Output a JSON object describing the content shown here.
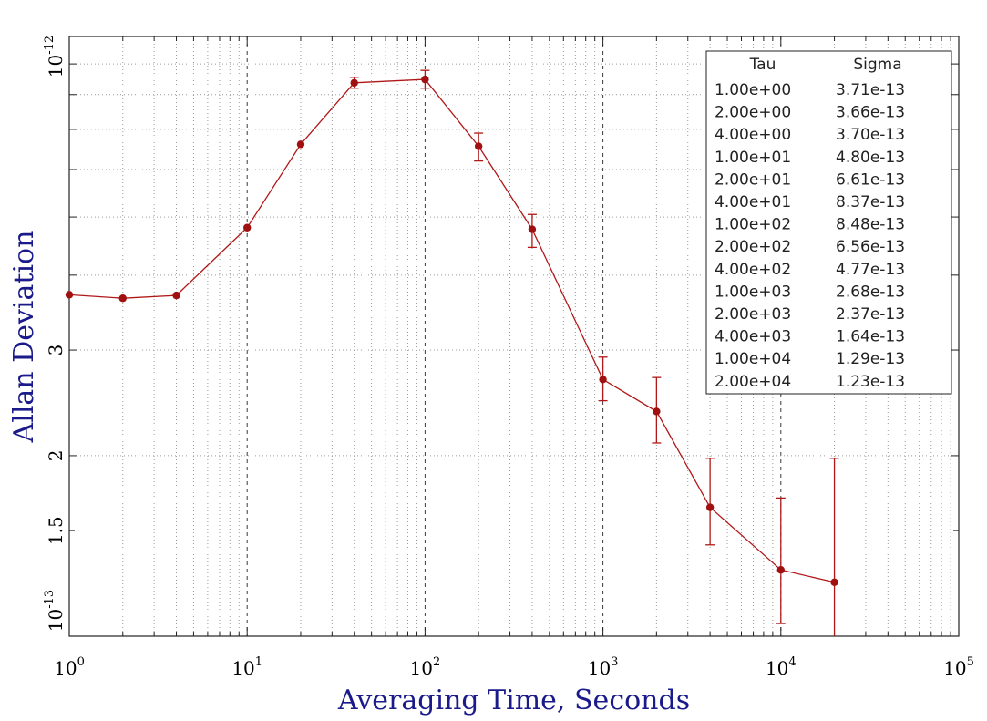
{
  "chart_data": {
    "type": "line",
    "title": "",
    "xlabel": "Averaging Time, Seconds",
    "ylabel": "Allan Deviation",
    "x_scale": "log",
    "y_scale": "log",
    "xlim": [
      1,
      100000
    ],
    "ylim": [
      1e-13,
      1e-12
    ],
    "grid": true,
    "x_ticks": [
      {
        "value": 1,
        "base": "10",
        "exp": "0"
      },
      {
        "value": 10,
        "base": "10",
        "exp": "1"
      },
      {
        "value": 100,
        "base": "10",
        "exp": "2"
      },
      {
        "value": 1000,
        "base": "10",
        "exp": "3"
      },
      {
        "value": 10000,
        "base": "10",
        "exp": "4"
      },
      {
        "value": 100000,
        "base": "10",
        "exp": "5"
      }
    ],
    "y_ticks": [
      {
        "value": 1e-13,
        "base": "10",
        "exp": "-13"
      },
      {
        "value": 1.5e-13,
        "base": "1.5",
        "exp": ""
      },
      {
        "value": 2e-13,
        "base": "2",
        "exp": ""
      },
      {
        "value": 3e-13,
        "base": "3",
        "exp": ""
      },
      {
        "value": 1e-12,
        "base": "10",
        "exp": "-12"
      }
    ],
    "series": [
      {
        "points": [
          {
            "x": 1,
            "y": 3.71e-13
          },
          {
            "x": 2,
            "y": 3.66e-13
          },
          {
            "x": 4,
            "y": 3.7e-13
          },
          {
            "x": 10,
            "y": 4.8e-13
          },
          {
            "x": 20,
            "y": 6.61e-13
          },
          {
            "x": 40,
            "y": 8.37e-13,
            "err": [
              8.2e-13,
              8.55e-13
            ]
          },
          {
            "x": 100,
            "y": 8.48e-13,
            "err": [
              8.2e-13,
              8.78e-13
            ]
          },
          {
            "x": 200,
            "y": 6.56e-13,
            "err": [
              6.2e-13,
              6.9e-13
            ]
          },
          {
            "x": 400,
            "y": 4.77e-13,
            "err": [
              4.45e-13,
              5.05e-13
            ]
          },
          {
            "x": 1000,
            "y": 2.68e-13,
            "err": [
              2.47e-13,
              2.92e-13
            ]
          },
          {
            "x": 2000,
            "y": 2.37e-13,
            "err": [
              2.1e-13,
              2.7e-13
            ]
          },
          {
            "x": 4000,
            "y": 1.64e-13,
            "err": [
              1.42e-13,
              1.98e-13
            ]
          },
          {
            "x": 10000,
            "y": 1.29e-13,
            "err": [
              1.05e-13,
              1.7e-13
            ]
          },
          {
            "x": 20000,
            "y": 1.23e-13,
            "err": [
              1e-13,
              1.98e-13
            ]
          }
        ]
      }
    ],
    "legend_table": {
      "headers": [
        "Tau",
        "Sigma"
      ],
      "position": "top-right",
      "rows": [
        [
          "1.00e+00",
          "3.71e-13"
        ],
        [
          "2.00e+00",
          "3.66e-13"
        ],
        [
          "4.00e+00",
          "3.70e-13"
        ],
        [
          "1.00e+01",
          "4.80e-13"
        ],
        [
          "2.00e+01",
          "6.61e-13"
        ],
        [
          "4.00e+01",
          "8.37e-13"
        ],
        [
          "1.00e+02",
          "8.48e-13"
        ],
        [
          "2.00e+02",
          "6.56e-13"
        ],
        [
          "4.00e+02",
          "4.77e-13"
        ],
        [
          "1.00e+03",
          "2.68e-13"
        ],
        [
          "2.00e+03",
          "2.37e-13"
        ],
        [
          "4.00e+03",
          "1.64e-13"
        ],
        [
          "1.00e+04",
          "1.29e-13"
        ],
        [
          "2.00e+04",
          "1.23e-13"
        ]
      ]
    },
    "colors": {
      "series": "#b01818",
      "marker": "#a01010",
      "axis_title": "#1a1a8a"
    }
  }
}
